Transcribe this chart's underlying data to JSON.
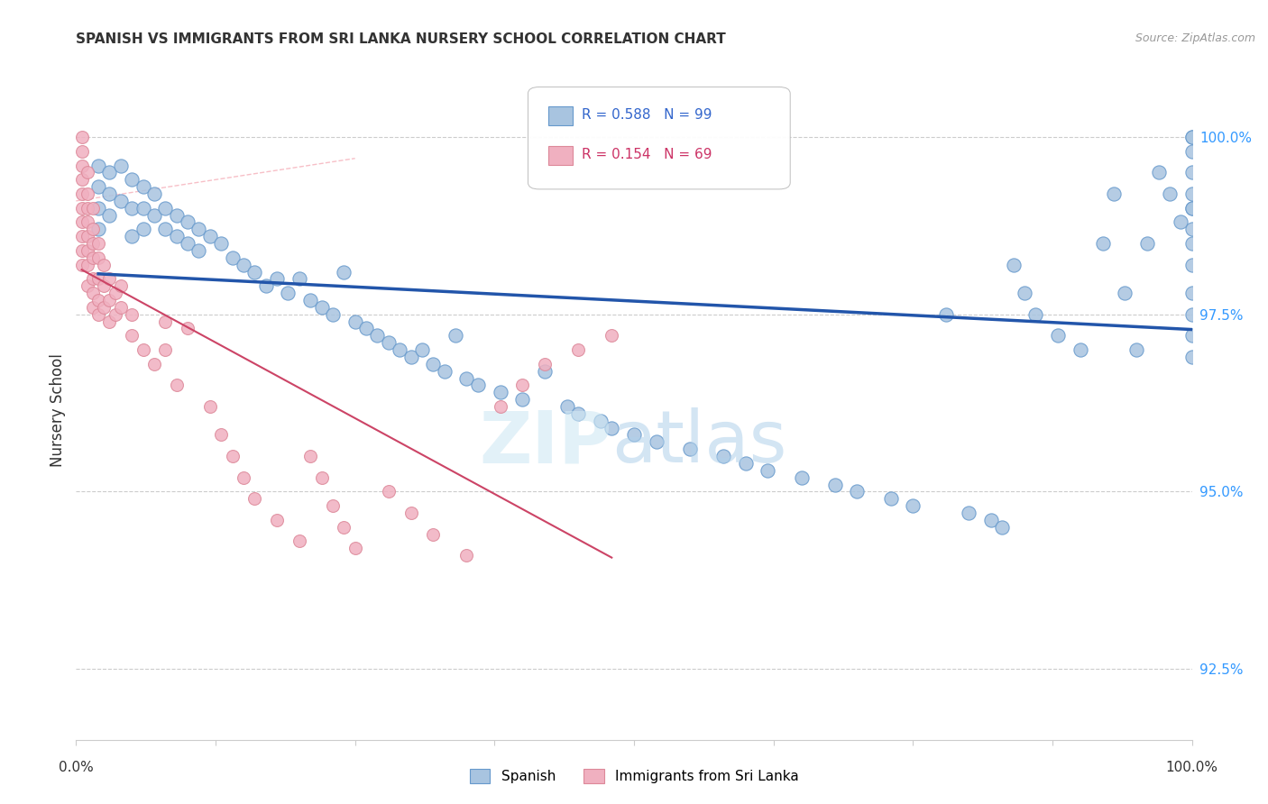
{
  "title": "SPANISH VS IMMIGRANTS FROM SRI LANKA NURSERY SCHOOL CORRELATION CHART",
  "source": "Source: ZipAtlas.com",
  "ylabel": "Nursery School",
  "yticks": [
    92.5,
    95.0,
    97.5,
    100.0
  ],
  "ytick_labels": [
    "92.5%",
    "95.0%",
    "97.5%",
    "100.0%"
  ],
  "xlim": [
    0.0,
    1.0
  ],
  "ylim": [
    91.5,
    100.8
  ],
  "legend_blue_label": "Spanish",
  "legend_pink_label": "Immigrants from Sri Lanka",
  "blue_R": 0.588,
  "blue_N": 99,
  "pink_R": 0.154,
  "pink_N": 69,
  "blue_color": "#a8c4e0",
  "blue_edge_color": "#6699cc",
  "blue_line_color": "#2255aa",
  "pink_color": "#f0b0c0",
  "pink_edge_color": "#dd8899",
  "pink_line_color": "#cc4466",
  "grid_color": "#cccccc",
  "blue_scatter_x": [
    0.02,
    0.02,
    0.02,
    0.02,
    0.03,
    0.03,
    0.03,
    0.04,
    0.04,
    0.05,
    0.05,
    0.05,
    0.06,
    0.06,
    0.06,
    0.07,
    0.07,
    0.08,
    0.08,
    0.09,
    0.09,
    0.1,
    0.1,
    0.11,
    0.11,
    0.12,
    0.13,
    0.14,
    0.15,
    0.16,
    0.17,
    0.18,
    0.19,
    0.2,
    0.21,
    0.22,
    0.23,
    0.24,
    0.25,
    0.26,
    0.27,
    0.28,
    0.29,
    0.3,
    0.31,
    0.32,
    0.33,
    0.34,
    0.35,
    0.36,
    0.38,
    0.4,
    0.42,
    0.44,
    0.45,
    0.47,
    0.48,
    0.5,
    0.52,
    0.55,
    0.58,
    0.6,
    0.62,
    0.65,
    0.68,
    0.7,
    0.73,
    0.75,
    0.78,
    0.8,
    0.82,
    0.83,
    0.84,
    0.85,
    0.86,
    0.88,
    0.9,
    0.92,
    0.93,
    0.94,
    0.95,
    0.96,
    0.97,
    0.98,
    0.99,
    1.0,
    1.0,
    1.0,
    1.0,
    1.0,
    1.0,
    1.0,
    1.0,
    1.0,
    1.0,
    1.0,
    1.0,
    1.0,
    1.0
  ],
  "blue_scatter_y": [
    99.6,
    99.3,
    99.0,
    98.7,
    99.5,
    99.2,
    98.9,
    99.6,
    99.1,
    99.4,
    99.0,
    98.6,
    99.3,
    99.0,
    98.7,
    99.2,
    98.9,
    99.0,
    98.7,
    98.9,
    98.6,
    98.8,
    98.5,
    98.7,
    98.4,
    98.6,
    98.5,
    98.3,
    98.2,
    98.1,
    97.9,
    98.0,
    97.8,
    98.0,
    97.7,
    97.6,
    97.5,
    98.1,
    97.4,
    97.3,
    97.2,
    97.1,
    97.0,
    96.9,
    97.0,
    96.8,
    96.7,
    97.2,
    96.6,
    96.5,
    96.4,
    96.3,
    96.7,
    96.2,
    96.1,
    96.0,
    95.9,
    95.8,
    95.7,
    95.6,
    95.5,
    95.4,
    95.3,
    95.2,
    95.1,
    95.0,
    94.9,
    94.8,
    97.5,
    94.7,
    94.6,
    94.5,
    98.2,
    97.8,
    97.5,
    97.2,
    97.0,
    98.5,
    99.2,
    97.8,
    97.0,
    98.5,
    99.5,
    99.2,
    98.8,
    99.0,
    98.5,
    98.2,
    97.8,
    97.5,
    97.2,
    96.9,
    100.0,
    99.8,
    99.5,
    99.2,
    99.0,
    98.7,
    100.0
  ],
  "pink_scatter_x": [
    0.005,
    0.005,
    0.005,
    0.005,
    0.005,
    0.005,
    0.005,
    0.005,
    0.005,
    0.005,
    0.01,
    0.01,
    0.01,
    0.01,
    0.01,
    0.01,
    0.01,
    0.01,
    0.015,
    0.015,
    0.015,
    0.015,
    0.015,
    0.015,
    0.015,
    0.02,
    0.02,
    0.02,
    0.02,
    0.02,
    0.025,
    0.025,
    0.025,
    0.03,
    0.03,
    0.03,
    0.035,
    0.035,
    0.04,
    0.04,
    0.05,
    0.05,
    0.06,
    0.07,
    0.08,
    0.08,
    0.09,
    0.1,
    0.12,
    0.13,
    0.14,
    0.15,
    0.16,
    0.18,
    0.2,
    0.21,
    0.22,
    0.23,
    0.24,
    0.25,
    0.28,
    0.3,
    0.32,
    0.35,
    0.38,
    0.4,
    0.42,
    0.45,
    0.48
  ],
  "pink_scatter_y": [
    100.0,
    99.8,
    99.6,
    99.4,
    99.2,
    99.0,
    98.8,
    98.6,
    98.4,
    98.2,
    99.5,
    99.2,
    99.0,
    98.8,
    98.6,
    98.4,
    98.2,
    97.9,
    99.0,
    98.7,
    98.5,
    98.3,
    98.0,
    97.8,
    97.6,
    98.5,
    98.3,
    98.0,
    97.7,
    97.5,
    98.2,
    97.9,
    97.6,
    98.0,
    97.7,
    97.4,
    97.8,
    97.5,
    97.9,
    97.6,
    97.5,
    97.2,
    97.0,
    96.8,
    97.4,
    97.0,
    96.5,
    97.3,
    96.2,
    95.8,
    95.5,
    95.2,
    94.9,
    94.6,
    94.3,
    95.5,
    95.2,
    94.8,
    94.5,
    94.2,
    95.0,
    94.7,
    94.4,
    94.1,
    96.2,
    96.5,
    96.8,
    97.0,
    97.2
  ]
}
